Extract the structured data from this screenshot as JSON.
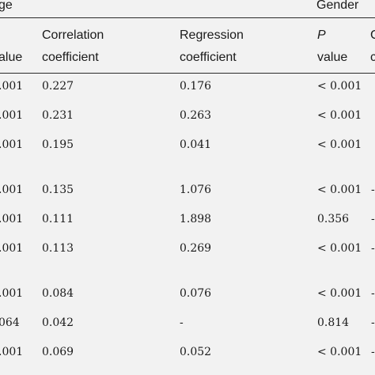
{
  "header": {
    "group_age_fragment": "ge",
    "group_gender": "Gender",
    "col_pvalue_fragment": "alue",
    "col_corr_line1": "Correlation",
    "col_corr_line2": "coefficient",
    "col_reg_line1": "Regression",
    "col_reg_line2": "coefficient",
    "col_p_letter": "P",
    "col_p_value": "value",
    "col_next_fragment": "C",
    "col_next_fragment2": "c"
  },
  "rows": [
    {
      "p": ".001",
      "corr": "0.227",
      "reg": "0.176",
      "gp": "< 0.001",
      "next": ""
    },
    {
      "p": ".001",
      "corr": "0.231",
      "reg": "0.263",
      "gp": "< 0.001",
      "next": ""
    },
    {
      "p": ".001",
      "corr": "0.195",
      "reg": "0.041",
      "gp": "< 0.001",
      "next": ""
    },
    {
      "p": ".001",
      "corr": "0.135",
      "reg": "1.076",
      "gp": "< 0.001",
      "next": "-"
    },
    {
      "p": ".001",
      "corr": "0.111",
      "reg": "1.898",
      "gp": "0.356",
      "next": "-"
    },
    {
      "p": ".001",
      "corr": "0.113",
      "reg": "0.269",
      "gp": "< 0.001",
      "next": "-"
    },
    {
      "p": ".001",
      "corr": "0.084",
      "reg": "0.076",
      "gp": "< 0.001",
      "next": "-"
    },
    {
      "p": "064",
      "corr": "0.042",
      "reg": "-",
      "gp": "0.814",
      "next": "-"
    },
    {
      "p": ".001",
      "corr": "0.069",
      "reg": "0.052",
      "gp": "< 0.001",
      "next": "-"
    }
  ]
}
